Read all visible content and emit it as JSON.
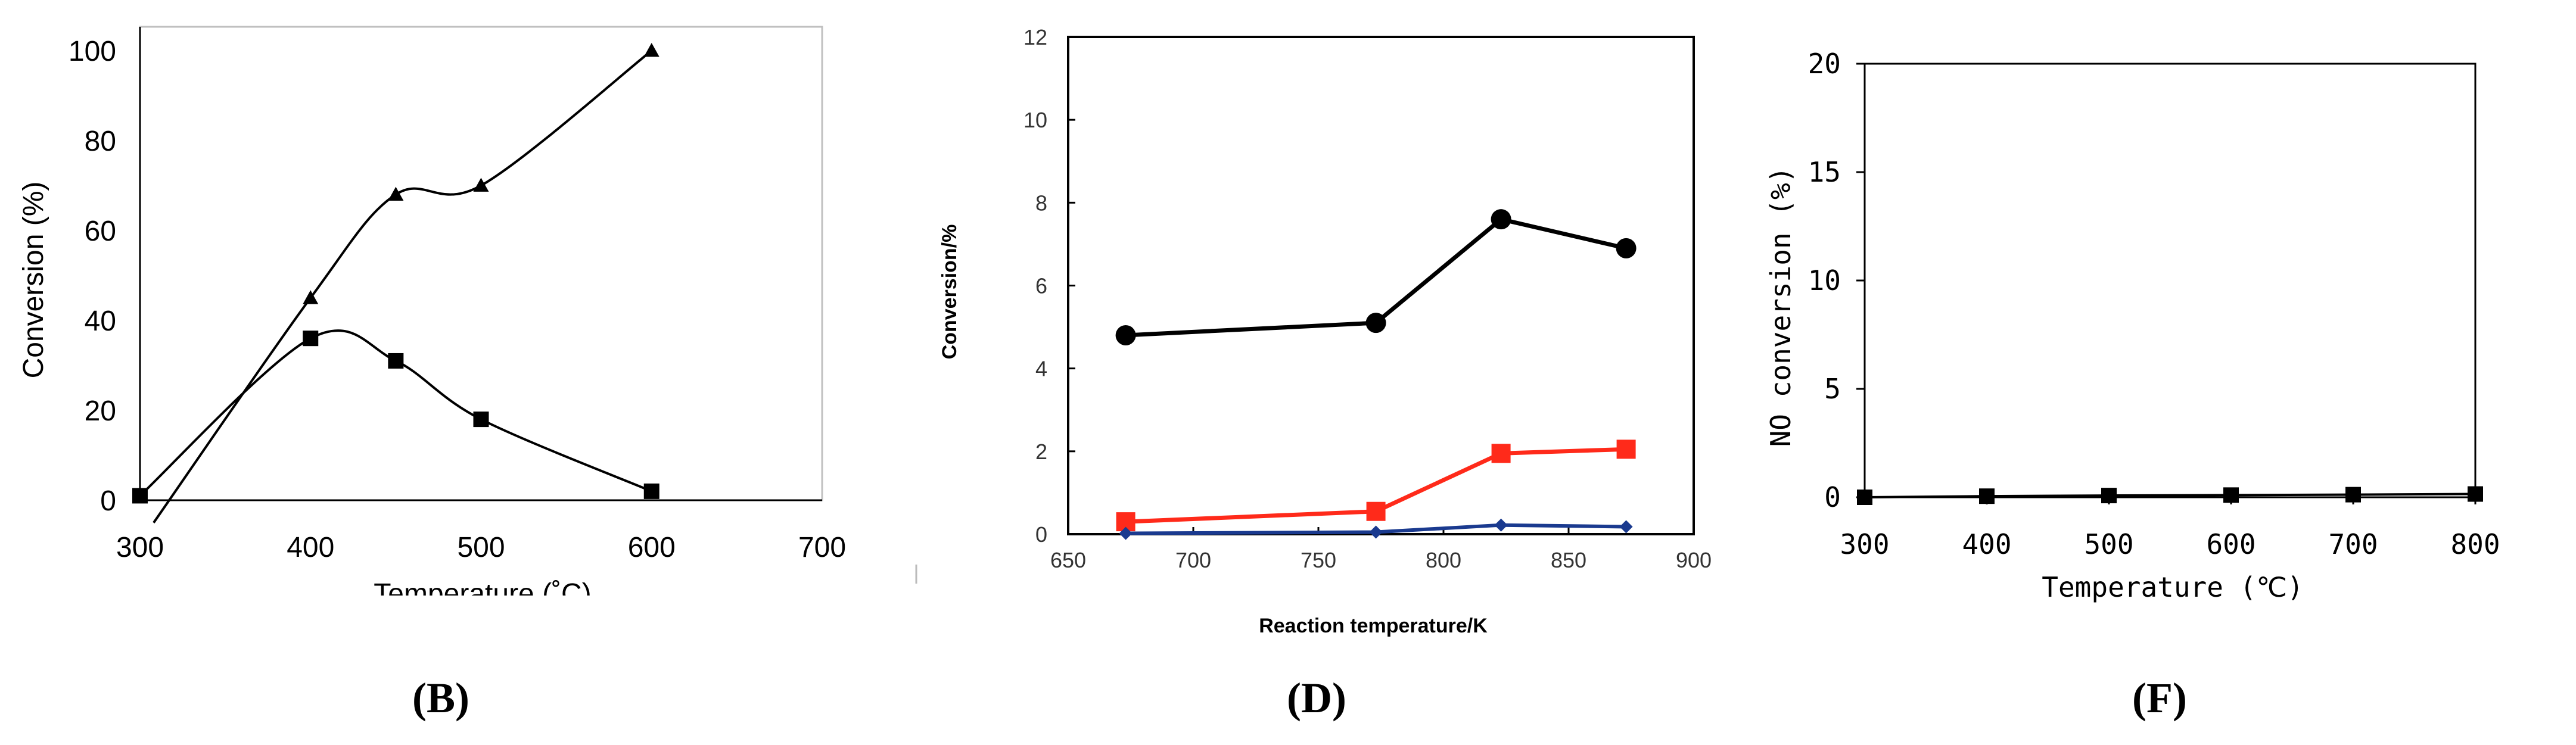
{
  "figure": {
    "panel_labels": [
      "(B)",
      "(D)",
      "(F)"
    ]
  },
  "chart_data": [
    {
      "id": "B",
      "type": "line",
      "panel_label": "(B)",
      "title": "",
      "xlabel": "Temperature (˚C)",
      "ylabel": "Conversion  (%)",
      "xlim": [
        300,
        700
      ],
      "ylim": [
        0,
        100
      ],
      "x_ticks": [
        300,
        400,
        500,
        600,
        700
      ],
      "y_ticks": [
        0,
        20,
        40,
        60,
        80,
        100
      ],
      "grid": false,
      "colors": {
        "axis": "#000000",
        "frame": "#c0c0c0",
        "series": "#000000"
      },
      "series": [
        {
          "name": "triangle series",
          "marker": "triangle",
          "x": [
            400,
            450,
            500,
            600
          ],
          "y": [
            45,
            68,
            70,
            100
          ]
        },
        {
          "name": "square series",
          "marker": "square",
          "x": [
            300,
            400,
            450,
            500,
            600
          ],
          "y": [
            1,
            36,
            31,
            18,
            2
          ]
        }
      ]
    },
    {
      "id": "D",
      "type": "line",
      "panel_label": "(D)",
      "title": "",
      "xlabel": "Reaction temperature/K",
      "ylabel": "Conversion/%",
      "xlim": [
        650,
        900
      ],
      "ylim": [
        0,
        12
      ],
      "x_ticks": [
        650,
        700,
        750,
        800,
        850,
        900
      ],
      "y_ticks": [
        0,
        2,
        4,
        6,
        8,
        10,
        12
      ],
      "grid": false,
      "colors": {
        "axis": "#000000",
        "black": "#000000",
        "red": "#ff2a1a",
        "blue": "#1a3a8f"
      },
      "series": [
        {
          "name": "black circles",
          "marker": "circle",
          "color": "#000000",
          "x": [
            673,
            773,
            823,
            873
          ],
          "y": [
            4.8,
            5.1,
            7.6,
            6.9
          ]
        },
        {
          "name": "red squares",
          "marker": "square",
          "color": "#ff2a1a",
          "x": [
            673,
            773,
            823,
            873
          ],
          "y": [
            0.3,
            0.55,
            1.95,
            2.05
          ]
        },
        {
          "name": "blue diamonds",
          "marker": "diamond",
          "color": "#1a3a8f",
          "x": [
            673,
            773,
            823,
            873
          ],
          "y": [
            0.02,
            0.05,
            0.22,
            0.18
          ]
        }
      ]
    },
    {
      "id": "F",
      "type": "line",
      "panel_label": "(F)",
      "title": "",
      "xlabel": "Temperature (℃)",
      "ylabel": "NO conversion (%)",
      "xlim": [
        300,
        800
      ],
      "ylim": [
        0,
        20
      ],
      "x_ticks": [
        300,
        400,
        500,
        600,
        700,
        800
      ],
      "y_ticks": [
        0,
        5,
        10,
        15,
        20
      ],
      "grid": false,
      "colors": {
        "axis": "#000000",
        "series": "#000000"
      },
      "series": [
        {
          "name": "square series",
          "marker": "square",
          "x": [
            300,
            400,
            500,
            600,
            700,
            800
          ],
          "y": [
            0,
            0.05,
            0.08,
            0.1,
            0.12,
            0.15
          ]
        }
      ]
    }
  ]
}
